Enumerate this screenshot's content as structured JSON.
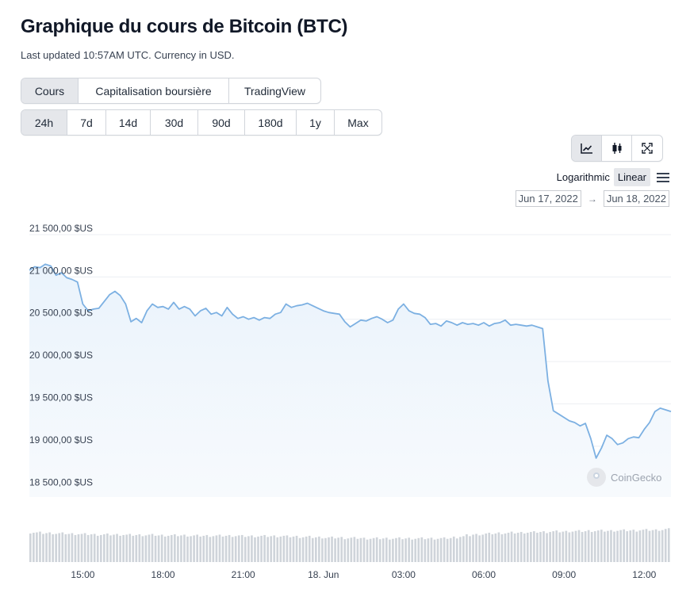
{
  "header": {
    "title": "Graphique du cours de Bitcoin (BTC)",
    "subtitle": "Last updated 10:57AM UTC. Currency in USD."
  },
  "view_tabs": [
    {
      "label": "Cours",
      "active": true
    },
    {
      "label": "Capitalisation boursière",
      "active": false
    },
    {
      "label": "TradingView",
      "active": false
    }
  ],
  "range_tabs": [
    {
      "label": "24h",
      "active": true
    },
    {
      "label": "7d",
      "active": false
    },
    {
      "label": "14d",
      "active": false
    },
    {
      "label": "30d",
      "active": false
    },
    {
      "label": "90d",
      "active": false
    },
    {
      "label": "180d",
      "active": false
    },
    {
      "label": "1y",
      "active": false
    },
    {
      "label": "Max",
      "active": false
    }
  ],
  "chart_icons": [
    "line-chart-icon",
    "candlestick-icon",
    "fullscreen-icon"
  ],
  "scale": {
    "logarithmic": "Logarithmic",
    "linear": "Linear",
    "active": "linear"
  },
  "date_range": {
    "from": "Jun 17, 2022",
    "arrow": "→",
    "to": "Jun 18, 2022"
  },
  "watermark": "CoinGecko",
  "chart_data": {
    "type": "area",
    "line_color": "#7cb0e2",
    "fill_color": "#eaf3fc",
    "volume_color": "#cfd4da",
    "ylim": [
      18400,
      21640
    ],
    "ylim_note": "visible y axis extends from slightly below 18 500 to slightly above 21 500",
    "y_ticks": [
      21500,
      21000,
      20500,
      20000,
      19500,
      19000,
      18500
    ],
    "y_tick_labels": [
      "21 500,00 $US",
      "21 000,00 $US",
      "20 500,00 $US",
      "20 000,00 $US",
      "19 500,00 $US",
      "19 000,00 $US",
      "18 500,00 $US"
    ],
    "x_ticks": [
      "15:00",
      "18:00",
      "21:00",
      "18. Jun",
      "03:00",
      "06:00",
      "09:00",
      "12:00"
    ],
    "x_tick_hours": [
      15,
      18,
      21,
      24,
      27,
      30,
      33,
      36
    ],
    "x_range_hours": [
      13.0,
      37.0
    ],
    "grid": true,
    "series": [
      {
        "values": [
          [
            13.0,
            21080
          ],
          [
            13.2,
            21120
          ],
          [
            13.4,
            21110
          ],
          [
            13.6,
            21150
          ],
          [
            13.8,
            21130
          ],
          [
            14.0,
            21020
          ],
          [
            14.2,
            21050
          ],
          [
            14.4,
            20990
          ],
          [
            14.6,
            20970
          ],
          [
            14.8,
            20940
          ],
          [
            15.0,
            20680
          ],
          [
            15.2,
            20600
          ],
          [
            15.4,
            20620
          ],
          [
            15.6,
            20630
          ],
          [
            15.8,
            20710
          ],
          [
            16.0,
            20790
          ],
          [
            16.2,
            20830
          ],
          [
            16.4,
            20780
          ],
          [
            16.6,
            20680
          ],
          [
            16.8,
            20470
          ],
          [
            17.0,
            20510
          ],
          [
            17.2,
            20460
          ],
          [
            17.4,
            20600
          ],
          [
            17.6,
            20680
          ],
          [
            17.8,
            20640
          ],
          [
            18.0,
            20650
          ],
          [
            18.2,
            20620
          ],
          [
            18.4,
            20700
          ],
          [
            18.6,
            20620
          ],
          [
            18.8,
            20650
          ],
          [
            19.0,
            20620
          ],
          [
            19.2,
            20540
          ],
          [
            19.4,
            20600
          ],
          [
            19.6,
            20630
          ],
          [
            19.8,
            20560
          ],
          [
            20.0,
            20580
          ],
          [
            20.2,
            20540
          ],
          [
            20.4,
            20640
          ],
          [
            20.6,
            20560
          ],
          [
            20.8,
            20510
          ],
          [
            21.0,
            20530
          ],
          [
            21.2,
            20500
          ],
          [
            21.4,
            20520
          ],
          [
            21.6,
            20490
          ],
          [
            21.8,
            20520
          ],
          [
            22.0,
            20510
          ],
          [
            22.2,
            20560
          ],
          [
            22.4,
            20580
          ],
          [
            22.6,
            20680
          ],
          [
            22.8,
            20640
          ],
          [
            23.0,
            20660
          ],
          [
            23.2,
            20670
          ],
          [
            23.4,
            20690
          ],
          [
            23.6,
            20660
          ],
          [
            23.8,
            20630
          ],
          [
            24.0,
            20600
          ],
          [
            24.2,
            20580
          ],
          [
            24.4,
            20570
          ],
          [
            24.6,
            20560
          ],
          [
            24.8,
            20470
          ],
          [
            25.0,
            20410
          ],
          [
            25.2,
            20450
          ],
          [
            25.4,
            20490
          ],
          [
            25.6,
            20480
          ],
          [
            25.8,
            20510
          ],
          [
            26.0,
            20530
          ],
          [
            26.2,
            20500
          ],
          [
            26.4,
            20460
          ],
          [
            26.6,
            20490
          ],
          [
            26.8,
            20620
          ],
          [
            27.0,
            20680
          ],
          [
            27.2,
            20600
          ],
          [
            27.4,
            20570
          ],
          [
            27.6,
            20560
          ],
          [
            27.8,
            20520
          ],
          [
            28.0,
            20440
          ],
          [
            28.2,
            20450
          ],
          [
            28.4,
            20420
          ],
          [
            28.6,
            20480
          ],
          [
            28.8,
            20460
          ],
          [
            29.0,
            20430
          ],
          [
            29.2,
            20460
          ],
          [
            29.4,
            20440
          ],
          [
            29.6,
            20450
          ],
          [
            29.8,
            20430
          ],
          [
            30.0,
            20460
          ],
          [
            30.2,
            20420
          ],
          [
            30.4,
            20450
          ],
          [
            30.6,
            20460
          ],
          [
            30.8,
            20490
          ],
          [
            31.0,
            20430
          ],
          [
            31.2,
            20440
          ],
          [
            31.4,
            20430
          ],
          [
            31.6,
            20420
          ],
          [
            31.8,
            20430
          ],
          [
            32.0,
            20410
          ],
          [
            32.2,
            20390
          ],
          [
            32.4,
            19770
          ],
          [
            32.6,
            19420
          ],
          [
            32.8,
            19380
          ],
          [
            33.0,
            19340
          ],
          [
            33.2,
            19300
          ],
          [
            33.4,
            19280
          ],
          [
            33.6,
            19240
          ],
          [
            33.8,
            19270
          ],
          [
            34.0,
            19090
          ],
          [
            34.2,
            18860
          ],
          [
            34.4,
            18980
          ],
          [
            34.6,
            19130
          ],
          [
            34.8,
            19090
          ],
          [
            35.0,
            19020
          ],
          [
            35.2,
            19040
          ],
          [
            35.4,
            19090
          ],
          [
            35.6,
            19110
          ],
          [
            35.8,
            19100
          ],
          [
            36.0,
            19200
          ],
          [
            36.2,
            19280
          ],
          [
            36.4,
            19410
          ],
          [
            36.6,
            19450
          ],
          [
            36.8,
            19430
          ],
          [
            37.0,
            19410
          ]
        ]
      }
    ],
    "volume_relative": [
      0.78,
      0.77,
      0.76,
      0.76,
      0.75,
      0.75,
      0.74,
      0.74,
      0.73,
      0.73,
      0.72,
      0.72,
      0.72,
      0.72,
      0.72,
      0.71,
      0.71,
      0.71,
      0.71,
      0.71,
      0.7,
      0.7,
      0.7,
      0.7,
      0.7,
      0.69,
      0.69,
      0.69,
      0.69,
      0.69,
      0.69,
      0.69,
      0.69,
      0.68,
      0.68,
      0.68,
      0.68,
      0.68,
      0.68,
      0.68,
      0.67,
      0.67,
      0.66,
      0.66,
      0.65,
      0.65,
      0.64,
      0.64,
      0.64,
      0.63,
      0.63,
      0.63,
      0.62,
      0.62,
      0.62,
      0.62,
      0.62,
      0.62,
      0.62,
      0.62,
      0.62,
      0.62,
      0.62,
      0.62,
      0.62,
      0.63,
      0.65,
      0.67,
      0.7,
      0.72,
      0.73,
      0.74,
      0.75,
      0.76,
      0.76,
      0.77,
      0.77,
      0.78,
      0.78,
      0.79,
      0.79,
      0.8,
      0.8,
      0.8,
      0.81,
      0.81,
      0.81,
      0.82,
      0.82,
      0.82,
      0.82,
      0.83,
      0.83,
      0.83,
      0.83,
      0.84,
      0.84,
      0.84,
      0.85,
      0.86
    ]
  }
}
